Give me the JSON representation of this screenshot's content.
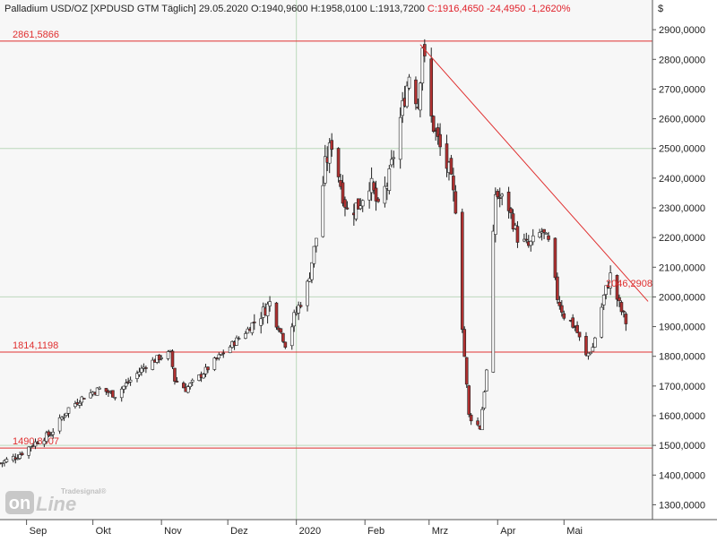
{
  "header": {
    "instrument": "Palladium USD/OZ [XPDUSD GTM  Täglich]",
    "date": "29.05.2020",
    "ohlc": "O:1940,9600 H:1958,0100 L:1913,7200",
    "change": "C:1916,4650 -24,4950 -1,2620%"
  },
  "currency_label": "$",
  "watermark": {
    "brand_small": "Tradesignal®",
    "brand_big_1": "on",
    "brand_big_2": "Line"
  },
  "colors": {
    "up_candle": "#ffffff",
    "down_candle": "#b03030",
    "level_line": "#e03030",
    "trend_line": "#e03030",
    "grid_line": "#bcd8bc",
    "change_text": "#e0202a"
  },
  "chart_data": {
    "type": "candlestick",
    "title": "Palladium USD/OZ [XPDUSD GTM  Täglich]",
    "y_axis": {
      "side": "right",
      "range": [
        1250,
        3000
      ],
      "ticks": [
        1300,
        1400,
        1500,
        1600,
        1700,
        1800,
        1900,
        2000,
        2100,
        2200,
        2300,
        2400,
        2500,
        2600,
        2700,
        2800,
        2900
      ],
      "tick_labels": [
        "1300,0000",
        "1400,0000",
        "1500,0000",
        "1600,0000",
        "1700,0000",
        "1800,0000",
        "1900,0000",
        "2000,0000",
        "2100,0000",
        "2200,0000",
        "2300,0000",
        "2400,0000",
        "2500,0000",
        "2600,0000",
        "2700,0000",
        "2800,0000",
        "2900,0000"
      ]
    },
    "x_axis": {
      "months": [
        {
          "label": "Sep",
          "date": "2019-09-01"
        },
        {
          "label": "Okt",
          "date": "2019-10-01"
        },
        {
          "label": "Nov",
          "date": "2019-11-01"
        },
        {
          "label": "Dez",
          "date": "2019-12-01"
        },
        {
          "label": "2020",
          "date": "2020-01-01"
        },
        {
          "label": "Feb",
          "date": "2020-02-01"
        },
        {
          "label": "Mrz",
          "date": "2020-03-01"
        },
        {
          "label": "Apr",
          "date": "2020-04-01"
        },
        {
          "label": "Mai",
          "date": "2020-05-01"
        }
      ],
      "range": [
        "2019-08-20",
        "2020-06-10"
      ]
    },
    "price_path": [
      {
        "date": "2019-08-20",
        "price": 1440
      },
      {
        "date": "2019-08-28",
        "price": 1465
      },
      {
        "date": "2019-09-04",
        "price": 1505
      },
      {
        "date": "2019-09-12",
        "price": 1540
      },
      {
        "date": "2019-09-20",
        "price": 1625
      },
      {
        "date": "2019-09-27",
        "price": 1665
      },
      {
        "date": "2019-10-04",
        "price": 1690
      },
      {
        "date": "2019-10-11",
        "price": 1670
      },
      {
        "date": "2019-10-18",
        "price": 1720
      },
      {
        "date": "2019-10-25",
        "price": 1770
      },
      {
        "date": "2019-11-01",
        "price": 1800
      },
      {
        "date": "2019-11-05",
        "price": 1810
      },
      {
        "date": "2019-11-07",
        "price": 1720
      },
      {
        "date": "2019-11-12",
        "price": 1690
      },
      {
        "date": "2019-11-18",
        "price": 1730
      },
      {
        "date": "2019-11-26",
        "price": 1790
      },
      {
        "date": "2019-12-03",
        "price": 1840
      },
      {
        "date": "2019-12-10",
        "price": 1890
      },
      {
        "date": "2019-12-17",
        "price": 1950
      },
      {
        "date": "2019-12-20",
        "price": 1980
      },
      {
        "date": "2019-12-24",
        "price": 1900
      },
      {
        "date": "2019-12-27",
        "price": 1840
      },
      {
        "date": "2019-12-31",
        "price": 1930
      },
      {
        "date": "2020-01-06",
        "price": 2040
      },
      {
        "date": "2020-01-10",
        "price": 2200
      },
      {
        "date": "2020-01-14",
        "price": 2440
      },
      {
        "date": "2020-01-17",
        "price": 2520
      },
      {
        "date": "2020-01-21",
        "price": 2380
      },
      {
        "date": "2020-01-24",
        "price": 2290
      },
      {
        "date": "2020-01-29",
        "price": 2310
      },
      {
        "date": "2020-02-03",
        "price": 2390
      },
      {
        "date": "2020-02-07",
        "price": 2300
      },
      {
        "date": "2020-02-12",
        "price": 2400
      },
      {
        "date": "2020-02-17",
        "price": 2600
      },
      {
        "date": "2020-02-21",
        "price": 2750
      },
      {
        "date": "2020-02-25",
        "price": 2650
      },
      {
        "date": "2020-02-27",
        "price": 2850
      },
      {
        "date": "2020-03-02",
        "price": 2600
      },
      {
        "date": "2020-03-06",
        "price": 2500
      },
      {
        "date": "2020-03-10",
        "price": 2420
      },
      {
        "date": "2020-03-13",
        "price": 2300
      },
      {
        "date": "2020-03-16",
        "price": 1900
      },
      {
        "date": "2020-03-19",
        "price": 1600
      },
      {
        "date": "2020-03-24",
        "price": 1560
      },
      {
        "date": "2020-03-27",
        "price": 1750
      },
      {
        "date": "2020-03-31",
        "price": 2350
      },
      {
        "date": "2020-04-06",
        "price": 2300
      },
      {
        "date": "2020-04-10",
        "price": 2200
      },
      {
        "date": "2020-04-15",
        "price": 2170
      },
      {
        "date": "2020-04-21",
        "price": 2220
      },
      {
        "date": "2020-04-24",
        "price": 2180
      },
      {
        "date": "2020-04-28",
        "price": 2000
      },
      {
        "date": "2020-05-01",
        "price": 1940
      },
      {
        "date": "2020-05-06",
        "price": 1900
      },
      {
        "date": "2020-05-11",
        "price": 1800
      },
      {
        "date": "2020-05-14",
        "price": 1830
      },
      {
        "date": "2020-05-19",
        "price": 2000
      },
      {
        "date": "2020-05-22",
        "price": 2070
      },
      {
        "date": "2020-05-26",
        "price": 1970
      },
      {
        "date": "2020-05-29",
        "price": 1916
      }
    ],
    "levels": [
      {
        "label": "2861,5866",
        "value": 2861.5866
      },
      {
        "label": "1814,1198",
        "value": 1814.1198
      },
      {
        "label": "1490,8607",
        "value": 1490.8607
      }
    ],
    "trend_line": {
      "from": {
        "date": "2020-02-26",
        "price": 2850
      },
      "to": {
        "date": "2020-06-08",
        "price": 1985
      },
      "label": "2046,2908",
      "label_value": 2046.2908
    },
    "grid": {
      "horizontal_at": [
        1500,
        2000,
        2500
      ],
      "vertical_at": [
        "2020-01-01"
      ]
    }
  }
}
